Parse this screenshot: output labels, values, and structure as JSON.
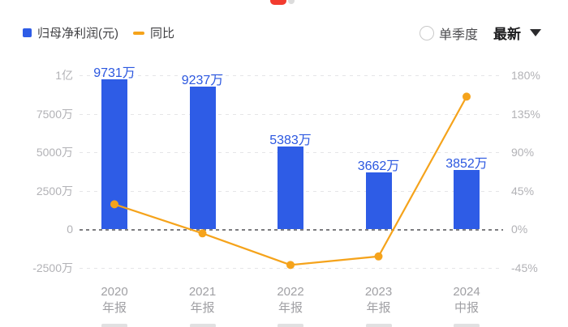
{
  "header": {
    "legend": [
      {
        "label": "归母净利润(元)",
        "marker": "bar-swatch",
        "color": "#2e5ce6"
      },
      {
        "label": "同比",
        "marker": "line-swatch",
        "color": "#f5a31b"
      }
    ],
    "controls": {
      "radio_label": "单季度",
      "radio_checked": false,
      "dropdown_label": "最新"
    },
    "carousel": {
      "active_color": "#f23b2f",
      "inactive_color": "#dcdcdc"
    }
  },
  "chart_data": {
    "type": "bar",
    "subtype": "bar+line combo, dual axis",
    "categories": [
      "2020 年报",
      "2021 年报",
      "2022 年报",
      "2023 年报",
      "2024 中报"
    ],
    "category_lines": [
      [
        "2020",
        "年报"
      ],
      [
        "2021",
        "年报"
      ],
      [
        "2022",
        "年报"
      ],
      [
        "2023",
        "年报"
      ],
      [
        "2024",
        "中报"
      ]
    ],
    "series": [
      {
        "name": "归母净利润(元)",
        "type": "bar",
        "axis": "left",
        "values_wan": [
          9731,
          9237,
          5383,
          3662,
          3852
        ],
        "labels": [
          "9731万",
          "9237万",
          "5383万",
          "3662万",
          "3852万"
        ],
        "color": "#2e5ce6",
        "label_color": "#2b57e0"
      },
      {
        "name": "同比",
        "type": "line",
        "axis": "right",
        "values_pct_estimated": [
          29,
          -5,
          -42,
          -32,
          155
        ],
        "color": "#f5a31b"
      }
    ],
    "left_axis": {
      "ticks": [
        "1亿",
        "7500万",
        "5000万",
        "2500万",
        "0",
        "-2500万"
      ],
      "values_wan": [
        10000,
        7500,
        5000,
        2500,
        0,
        -2500
      ]
    },
    "right_axis": {
      "ticks": [
        "180%",
        "135%",
        "90%",
        "45%",
        "0%",
        "-45%"
      ],
      "values_pct": [
        180,
        135,
        90,
        45,
        0,
        -45
      ]
    },
    "grid": "horizontal dashed lines, zero line emphasized",
    "legend_position": "top-left"
  }
}
